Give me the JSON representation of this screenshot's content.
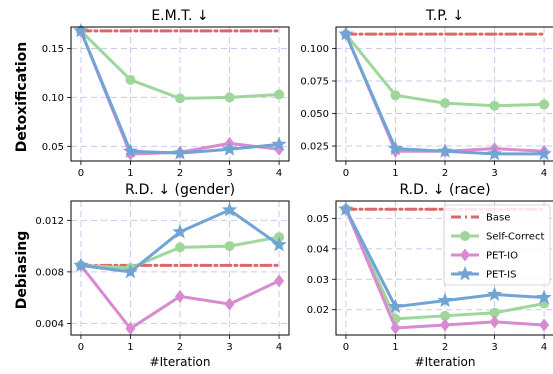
{
  "colors": {
    "base": "#d9686b",
    "self_correct": "#9fd79a",
    "pet_io": "#d98ad1",
    "pet_is": "#6fa4d4",
    "grid": "#c9c9ee"
  },
  "row_labels": [
    "Detoxification",
    "Debiasing"
  ],
  "chart_data": [
    {
      "type": "line",
      "title": "E.M.T. ↓",
      "xlabel": "",
      "ylabel": "",
      "x": [
        0,
        1,
        2,
        3,
        4
      ],
      "xlim": [
        -0.2,
        4.2
      ],
      "ylim": [
        0.035,
        0.172
      ],
      "yticks": [
        0.05,
        0.1,
        0.15
      ],
      "ytick_labels": [
        "0.05",
        "0.10",
        "0.15"
      ],
      "grid": true,
      "series": [
        {
          "name": "Base",
          "values": [
            0.168,
            0.168,
            0.168,
            0.168,
            0.168
          ]
        },
        {
          "name": "Self-Correct",
          "values": [
            0.168,
            0.118,
            0.099,
            0.1,
            0.103
          ]
        },
        {
          "name": "PET-IO",
          "values": [
            0.168,
            0.042,
            0.044,
            0.053,
            0.047
          ]
        },
        {
          "name": "PET-IS",
          "values": [
            0.168,
            0.045,
            0.043,
            0.047,
            0.052
          ]
        }
      ]
    },
    {
      "type": "line",
      "title": "T.P. ↓",
      "xlabel": "",
      "ylabel": "",
      "x": [
        0,
        1,
        2,
        3,
        4
      ],
      "xlim": [
        -0.2,
        4.2
      ],
      "ylim": [
        0.0135,
        0.1165
      ],
      "yticks": [
        0.025,
        0.05,
        0.075,
        0.1
      ],
      "ytick_labels": [
        "0.025",
        "0.050",
        "0.075",
        "0.100"
      ],
      "grid": true,
      "series": [
        {
          "name": "Base",
          "values": [
            0.111,
            0.111,
            0.111,
            0.111,
            0.111
          ]
        },
        {
          "name": "Self-Correct",
          "values": [
            0.111,
            0.064,
            0.058,
            0.056,
            0.057
          ]
        },
        {
          "name": "PET-IO",
          "values": [
            0.111,
            0.021,
            0.021,
            0.023,
            0.021
          ]
        },
        {
          "name": "PET-IS",
          "values": [
            0.111,
            0.023,
            0.021,
            0.019,
            0.019
          ]
        }
      ]
    },
    {
      "type": "line",
      "title": "R.D. ↓ (gender)",
      "xlabel": "#Iteration",
      "ylabel": "",
      "x": [
        0,
        1,
        2,
        3,
        4
      ],
      "xlim": [
        -0.2,
        4.2
      ],
      "ylim": [
        0.0031,
        0.0135
      ],
      "yticks": [
        0.004,
        0.008,
        0.012
      ],
      "ytick_labels": [
        "0.004",
        "0.008",
        "0.012"
      ],
      "grid": true,
      "series": [
        {
          "name": "Base",
          "values": [
            0.0085,
            0.0085,
            0.0085,
            0.0085,
            0.0085
          ]
        },
        {
          "name": "Self-Correct",
          "values": [
            0.0085,
            0.0083,
            0.0099,
            0.01,
            0.0107
          ]
        },
        {
          "name": "PET-IO",
          "values": [
            0.0085,
            0.0036,
            0.0061,
            0.0055,
            0.0073
          ]
        },
        {
          "name": "PET-IS",
          "values": [
            0.0085,
            0.008,
            0.0111,
            0.0128,
            0.0101
          ]
        }
      ]
    },
    {
      "type": "line",
      "title": "R.D. ↓ (race)",
      "xlabel": "#Iteration",
      "ylabel": "",
      "x": [
        0,
        1,
        2,
        3,
        4
      ],
      "xlim": [
        -0.2,
        4.2
      ],
      "ylim": [
        0.0117,
        0.0557
      ],
      "yticks": [
        0.02,
        0.03,
        0.04,
        0.05
      ],
      "ytick_labels": [
        "0.02",
        "0.03",
        "0.04",
        "0.05"
      ],
      "grid": true,
      "legend": "top-right",
      "series": [
        {
          "name": "Base",
          "values": [
            0.053,
            0.053,
            0.053,
            0.053,
            0.053
          ]
        },
        {
          "name": "Self-Correct",
          "values": [
            0.053,
            0.017,
            0.018,
            0.019,
            0.022
          ]
        },
        {
          "name": "PET-IO",
          "values": [
            0.053,
            0.014,
            0.015,
            0.016,
            0.015
          ]
        },
        {
          "name": "PET-IS",
          "values": [
            0.053,
            0.021,
            0.023,
            0.025,
            0.024
          ]
        }
      ]
    }
  ]
}
